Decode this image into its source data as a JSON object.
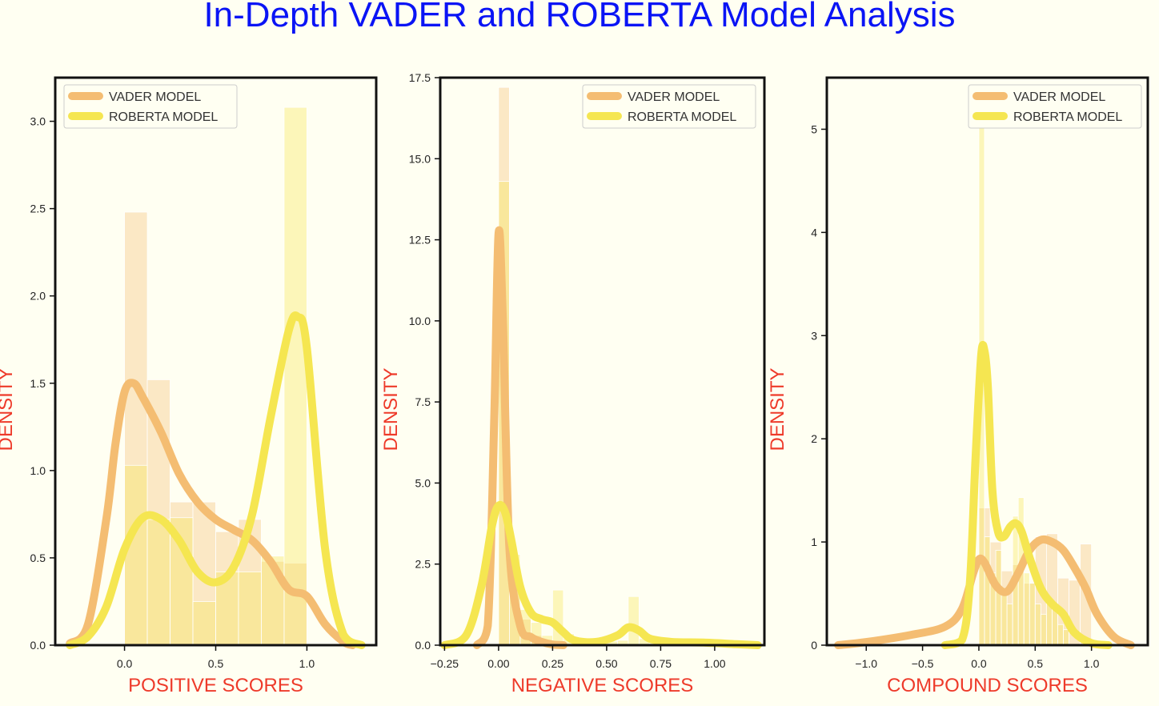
{
  "title": "In-Depth VADER and ROBERTA Model Analysis",
  "colors": {
    "background": "#fffff2",
    "title": "#0a14f5",
    "axis_label": "#ee3a2a",
    "vader": "#f4bd72",
    "roberta": "#f5e651"
  },
  "chart_data": [
    {
      "type": "histogram+kde",
      "xlabel": "POSITIVE SCORES",
      "ylabel": "DENSITY",
      "xlim": [
        -0.38,
        1.38
      ],
      "ylim": [
        0,
        3.25
      ],
      "xticks": [
        0.0,
        0.5,
        1.0
      ],
      "xtick_labels": [
        "0.0",
        "0.5",
        "1.0"
      ],
      "yticks": [
        0.0,
        0.5,
        1.0,
        1.5,
        2.0,
        2.5,
        3.0
      ],
      "ytick_labels": [
        "0.0",
        "0.5",
        "1.0",
        "1.5",
        "2.0",
        "2.5",
        "3.0"
      ],
      "legend": "top-left",
      "grid": false,
      "series": [
        {
          "name": "VADER MODEL",
          "color": "#f4bd72",
          "hist": {
            "edges": [
              0.0,
              0.125,
              0.25,
              0.375,
              0.5,
              0.625,
              0.75,
              0.875,
              1.0
            ],
            "densities": [
              2.48,
              1.52,
              0.82,
              0.82,
              0.65,
              0.72,
              0.48,
              0.47
            ]
          },
          "kde": {
            "x": [
              -0.3,
              -0.2,
              -0.1,
              -0.05,
              0.0,
              0.05,
              0.1,
              0.2,
              0.3,
              0.4,
              0.5,
              0.6,
              0.7,
              0.8,
              0.9,
              1.0,
              1.1,
              1.2,
              1.25
            ],
            "y": [
              0.01,
              0.12,
              0.72,
              1.15,
              1.45,
              1.5,
              1.42,
              1.22,
              0.98,
              0.82,
              0.72,
              0.66,
              0.6,
              0.48,
              0.32,
              0.28,
              0.12,
              0.02,
              0.0
            ]
          }
        },
        {
          "name": "ROBERTA MODEL",
          "color": "#f5e651",
          "hist": {
            "edges": [
              0.0,
              0.125,
              0.25,
              0.375,
              0.5,
              0.625,
              0.75,
              0.875,
              1.0
            ],
            "densities": [
              1.03,
              0.72,
              0.73,
              0.25,
              0.42,
              0.42,
              0.51,
              3.08
            ]
          },
          "kde": {
            "x": [
              -0.3,
              -0.2,
              -0.1,
              0.0,
              0.1,
              0.2,
              0.3,
              0.4,
              0.5,
              0.6,
              0.7,
              0.8,
              0.9,
              0.95,
              1.0,
              1.1,
              1.2,
              1.3
            ],
            "y": [
              0.0,
              0.05,
              0.22,
              0.55,
              0.73,
              0.72,
              0.6,
              0.42,
              0.36,
              0.45,
              0.75,
              1.3,
              1.8,
              1.88,
              1.7,
              0.55,
              0.06,
              0.0
            ]
          }
        }
      ]
    },
    {
      "type": "histogram+kde",
      "xlabel": "NEGATIVE SCORES",
      "ylabel": "DENSITY",
      "xlim": [
        -0.27,
        1.23
      ],
      "ylim": [
        0,
        17.5
      ],
      "xticks": [
        -0.25,
        0.0,
        0.25,
        0.5,
        0.75,
        1.0
      ],
      "xtick_labels": [
        "−0.25",
        "0.00",
        "0.25",
        "0.50",
        "0.75",
        "1.00"
      ],
      "yticks": [
        0.0,
        2.5,
        5.0,
        7.5,
        10.0,
        12.5,
        15.0,
        17.5
      ],
      "ytick_labels": [
        "0.0",
        "2.5",
        "5.0",
        "7.5",
        "10.0",
        "12.5",
        "15.0",
        "17.5"
      ],
      "legend": "top-right",
      "grid": false,
      "series": [
        {
          "name": "VADER MODEL",
          "color": "#f4bd72",
          "hist": {
            "edges": [
              0.0,
              0.05,
              0.1,
              0.15,
              0.2,
              0.25
            ],
            "densities": [
              17.2,
              2.1,
              0.8,
              0.3,
              0.12
            ]
          },
          "kde": {
            "x": [
              -0.1,
              -0.05,
              -0.02,
              0.0,
              0.02,
              0.05,
              0.1,
              0.15,
              0.2,
              0.25,
              0.3
            ],
            "y": [
              0.0,
              0.6,
              7.0,
              12.7,
              10.0,
              3.0,
              0.6,
              0.25,
              0.1,
              0.02,
              0.0
            ]
          }
        },
        {
          "name": "ROBERTA MODEL",
          "color": "#f5e651",
          "hist": {
            "edges": [
              0.0,
              0.05,
              0.1,
              0.15,
              0.2,
              0.25,
              0.3,
              0.35,
              0.4,
              0.45,
              0.5,
              0.55,
              0.6,
              0.65,
              0.7,
              0.75,
              0.8,
              0.85,
              0.9,
              0.95
            ],
            "densities": [
              14.3,
              2.8,
              1.1,
              0.7,
              0.3,
              1.7,
              0.35,
              0.2,
              0.15,
              0.1,
              0.12,
              0.15,
              1.5,
              0.2,
              0.1,
              0.08,
              0.06,
              0.05,
              0.04
            ]
          },
          "kde": {
            "x": [
              -0.25,
              -0.15,
              -0.08,
              -0.03,
              0.0,
              0.03,
              0.06,
              0.1,
              0.15,
              0.2,
              0.25,
              0.3,
              0.35,
              0.45,
              0.55,
              0.6,
              0.65,
              0.7,
              0.8,
              0.95,
              1.1,
              1.2
            ],
            "y": [
              0.0,
              0.3,
              1.8,
              3.7,
              4.3,
              4.1,
              3.2,
              1.8,
              1.0,
              0.8,
              0.7,
              0.4,
              0.15,
              0.1,
              0.3,
              0.55,
              0.45,
              0.2,
              0.1,
              0.08,
              0.03,
              0.0
            ]
          }
        }
      ]
    },
    {
      "type": "histogram+kde",
      "xlabel": "COMPOUND SCORES",
      "ylabel": "DENSITY",
      "xlim": [
        -1.35,
        1.5
      ],
      "ylim": [
        0,
        5.5
      ],
      "xticks": [
        -1.0,
        -0.5,
        0.0,
        0.5,
        1.0
      ],
      "xtick_labels": [
        "−1.0",
        "−0.5",
        "0.0",
        "0.5",
        "1.0"
      ],
      "yticks": [
        0,
        1,
        2,
        3,
        4,
        5
      ],
      "ytick_labels": [
        "0",
        "1",
        "2",
        "3",
        "4",
        "5"
      ],
      "legend": "top-right",
      "grid": false,
      "series": [
        {
          "name": "VADER MODEL",
          "color": "#f4bd72",
          "hist": {
            "edges": [
              0.0,
              0.1,
              0.2,
              0.3,
              0.4,
              0.5,
              0.6,
              0.7,
              0.8,
              0.9,
              1.0
            ],
            "densities": [
              1.33,
              1.0,
              0.72,
              0.78,
              0.6,
              1.05,
              1.08,
              0.65,
              0.63,
              0.98
            ]
          },
          "kde": {
            "x": [
              -1.25,
              -1.0,
              -0.6,
              -0.3,
              -0.15,
              -0.05,
              0.0,
              0.05,
              0.15,
              0.25,
              0.35,
              0.45,
              0.55,
              0.65,
              0.75,
              0.85,
              0.95,
              1.05,
              1.2,
              1.35
            ],
            "y": [
              0.0,
              0.03,
              0.1,
              0.18,
              0.35,
              0.7,
              0.83,
              0.8,
              0.58,
              0.52,
              0.7,
              0.92,
              1.02,
              1.0,
              0.92,
              0.75,
              0.55,
              0.3,
              0.08,
              0.0
            ]
          }
        },
        {
          "name": "ROBERTA MODEL",
          "color": "#f5e651",
          "hist": {
            "edges": [
              0.0,
              0.05,
              0.1,
              0.15,
              0.2,
              0.25,
              0.3,
              0.35,
              0.4,
              0.45,
              0.5,
              0.55,
              0.6,
              0.65,
              0.7,
              0.75,
              0.8
            ],
            "densities": [
              5.2,
              1.05,
              0.7,
              0.92,
              0.55,
              0.4,
              1.25,
              1.43,
              0.7,
              0.6,
              0.4,
              0.3,
              0.4,
              0.35,
              0.2,
              0.15
            ]
          },
          "kde": {
            "x": [
              -0.3,
              -0.15,
              -0.08,
              -0.03,
              0.02,
              0.05,
              0.08,
              0.12,
              0.17,
              0.22,
              0.28,
              0.33,
              0.38,
              0.45,
              0.55,
              0.65,
              0.75,
              0.85,
              1.0,
              1.15
            ],
            "y": [
              0.0,
              0.05,
              0.6,
              1.8,
              2.8,
              2.85,
              2.5,
              1.5,
              1.1,
              1.05,
              1.15,
              1.18,
              1.1,
              0.85,
              0.55,
              0.4,
              0.3,
              0.12,
              0.02,
              0.0
            ]
          }
        }
      ]
    }
  ]
}
